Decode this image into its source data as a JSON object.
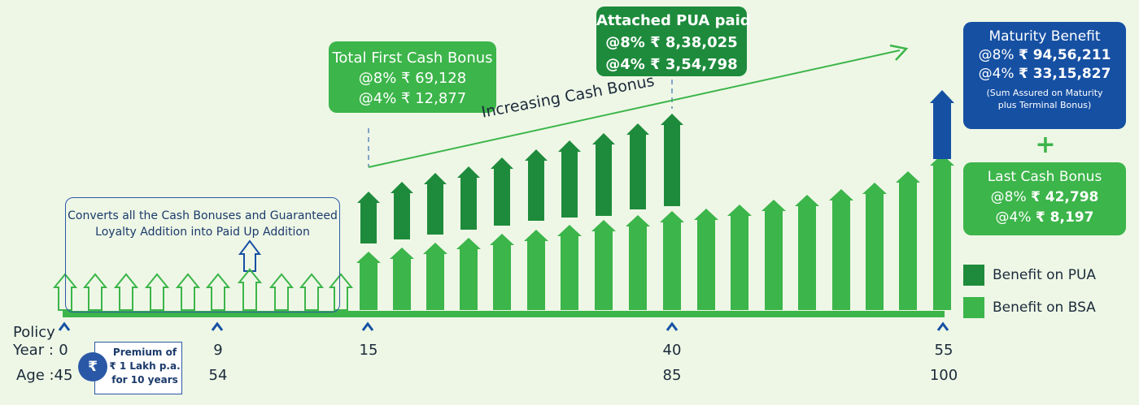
{
  "colors": {
    "bsa": "#3cb54a",
    "pua": "#1e8b3c",
    "maturity": "#1650a3",
    "outline": "#3cb54a",
    "timeline": "#3cb54a",
    "caret": "#1650a3",
    "background": "#eef7e6"
  },
  "bonus_box": {
    "title": "Total First Cash Bonus",
    "line1": "@8% ₹ 69,128",
    "line2": "@4% ₹ 12,877"
  },
  "pua_box": {
    "title": "Attached PUA paid",
    "line1": "@8% ₹ 8,38,025",
    "line2": "@4% ₹ 3,54,798"
  },
  "maturity_box": {
    "title": "Maturity Benefit",
    "line1_prefix": "@8% ",
    "line1_value": "₹ 94,56,211",
    "line2_prefix": "@4% ",
    "line2_value": "₹ 33,15,827",
    "note1": "(Sum Assured on Maturity",
    "note2": "plus Terminal Bonus)"
  },
  "plus_sign": "+",
  "last_box": {
    "title": "Last Cash Bonus",
    "line1_prefix": "@8% ",
    "line1_value": "₹ 42,798",
    "line2_prefix": "@4% ",
    "line2_value": "₹ 8,197"
  },
  "increasing_label": "Increasing Cash Bonus",
  "convert_text": {
    "line1": "Converts all the Cash Bonuses and Guaranteed",
    "line2": "Loyalty Addition into Paid Up Addition"
  },
  "premium": {
    "icon": "₹",
    "icon_name": "rupee-coins-icon",
    "line1": "Premium of",
    "line2": "₹ 1 Lakh p.a.",
    "line3": "for 10 years"
  },
  "axis": {
    "policy_label_1": "Policy",
    "policy_label_2": "Year :",
    "age_label": "Age :",
    "ticks": [
      {
        "year": "0",
        "age": "45"
      },
      {
        "year": "9",
        "age": "54"
      },
      {
        "year": "15",
        "age": ""
      },
      {
        "year": "40",
        "age": "85"
      },
      {
        "year": "55",
        "age": "100"
      }
    ]
  },
  "legend": [
    {
      "label": "Benefit on PUA",
      "color": "#1e8b3c"
    },
    {
      "label": "Benefit on BSA",
      "color": "#3cb54a"
    }
  ]
}
